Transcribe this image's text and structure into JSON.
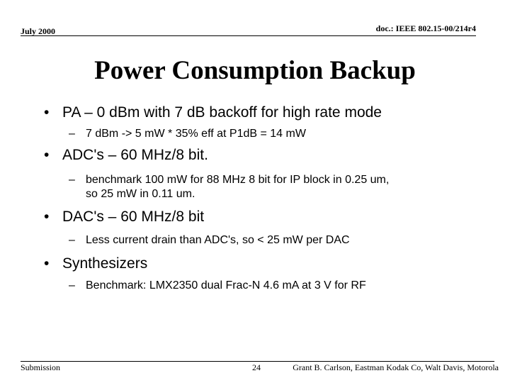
{
  "header": {
    "date": "July 2000",
    "doc_id": "doc.: IEEE 802.15-00/214r4"
  },
  "title": "Power Consumption Backup",
  "bullets": [
    {
      "marker": "•",
      "text": "PA – 0 dBm with 7 dB backoff for high rate mode",
      "sub": [
        {
          "marker": "–",
          "lines": [
            "7 dBm -> 5 mW * 35% eff at P1dB = 14 mW"
          ]
        }
      ]
    },
    {
      "marker": "•",
      "text": "ADC's – 60 MHz/8 bit.",
      "sub": [
        {
          "marker": "–",
          "lines": [
            "benchmark 100 mW for 88 MHz 8 bit for IP block in 0.25 um,",
            "so 25 mW in 0.11 um."
          ]
        }
      ]
    },
    {
      "marker": "•",
      "text": "DAC's – 60 MHz/8 bit",
      "sub": [
        {
          "marker": "–",
          "lines": [
            "Less current drain than ADC's, so < 25 mW per DAC"
          ]
        }
      ]
    },
    {
      "marker": "•",
      "text": "Synthesizers",
      "sub": [
        {
          "marker": "–",
          "lines": [
            "Benchmark: LMX2350 dual Frac-N 4.6 mA at 3 V for RF"
          ]
        }
      ]
    }
  ],
  "footer": {
    "left": "Submission",
    "page": "24",
    "right": "Grant B. Carlson, Eastman Kodak Co, Walt Davis, Motorola"
  }
}
